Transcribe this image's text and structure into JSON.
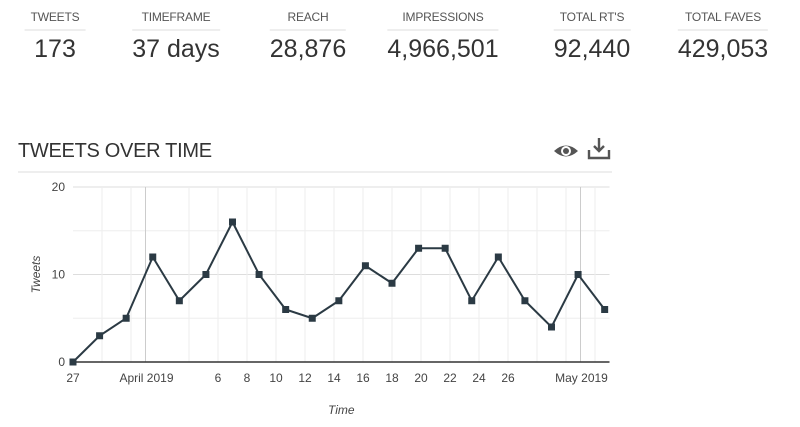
{
  "stats": [
    {
      "label": "TWEETS",
      "value": "173"
    },
    {
      "label": "TIMEFRAME",
      "value": "37 days"
    },
    {
      "label": "REACH",
      "value": "28,876"
    },
    {
      "label": "IMPRESSIONS",
      "value": "4,966,501"
    },
    {
      "label": "TOTAL RT'S",
      "value": "92,440"
    },
    {
      "label": "TOTAL FAVES",
      "value": "429,053"
    }
  ],
  "section": {
    "title": "TWEETS OVER TIME",
    "icons": [
      "eye-icon",
      "download-icon"
    ]
  },
  "chart_data": {
    "type": "line",
    "title": "",
    "xlabel": "Time",
    "ylabel": "Tweets",
    "ylim": [
      0,
      20
    ],
    "yticks": [
      0,
      10,
      20
    ],
    "xlim": [
      "2019-03-27T00:00",
      "2019-05-03T00:00"
    ],
    "xticks": [
      {
        "date": "2019-03-27",
        "label": "27"
      },
      {
        "date": "2019-04-01",
        "label": "April 2019"
      },
      {
        "date": "2019-04-06",
        "label": "6"
      },
      {
        "date": "2019-04-08",
        "label": "8"
      },
      {
        "date": "2019-04-10",
        "label": "10"
      },
      {
        "date": "2019-04-12",
        "label": "12"
      },
      {
        "date": "2019-04-14",
        "label": "14"
      },
      {
        "date": "2019-04-16",
        "label": "16"
      },
      {
        "date": "2019-04-18",
        "label": "18"
      },
      {
        "date": "2019-04-20",
        "label": "20"
      },
      {
        "date": "2019-04-22",
        "label": "22"
      },
      {
        "date": "2019-04-24",
        "label": "24"
      },
      {
        "date": "2019-04-26",
        "label": "26"
      },
      {
        "date": "2019-05-01",
        "label": "May 2019"
      }
    ],
    "grid": true,
    "line_color": "#2b3a44",
    "x": [
      "2019-03-27T00:00",
      "2019-03-28T20:00",
      "2019-03-30T16:00",
      "2019-04-01T12:00",
      "2019-04-03T08:00",
      "2019-04-05T04:00",
      "2019-04-07T00:00",
      "2019-04-08T20:00",
      "2019-04-10T16:00",
      "2019-04-12T12:00",
      "2019-04-14T08:00",
      "2019-04-16T04:00",
      "2019-04-18T00:00",
      "2019-04-19T20:00",
      "2019-04-21T16:00",
      "2019-04-23T12:00",
      "2019-04-25T08:00",
      "2019-04-27T04:00",
      "2019-04-29T00:00",
      "2019-04-30T20:00",
      "2019-05-02T16:00"
    ],
    "values": [
      0,
      3,
      5,
      12,
      7,
      10,
      16,
      10,
      6,
      5,
      7,
      11,
      9,
      13,
      13,
      7,
      12,
      7,
      4,
      10,
      6
    ]
  }
}
